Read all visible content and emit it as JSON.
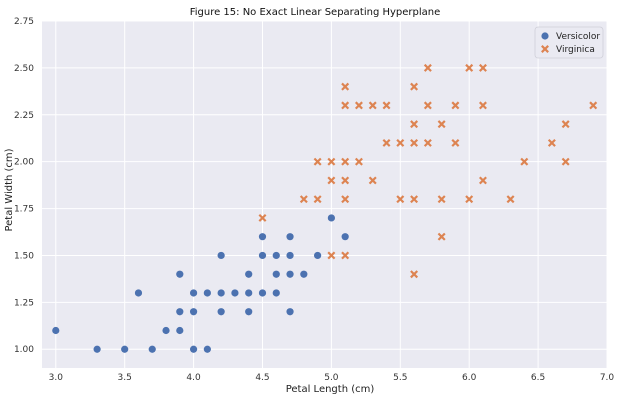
{
  "chart_data": {
    "type": "scatter",
    "title": "Figure 15: No Exact Linear Separating Hyperplane",
    "xlabel": "Petal Length (cm)",
    "ylabel": "Petal Width (cm)",
    "xlim": [
      2.9,
      7.0
    ],
    "ylim": [
      0.9,
      2.75
    ],
    "xticks": [
      "3.0",
      "3.5",
      "4.0",
      "4.5",
      "5.0",
      "5.5",
      "6.0",
      "6.5",
      "7.0"
    ],
    "yticks": [
      "1.00",
      "1.25",
      "1.50",
      "1.75",
      "2.00",
      "2.25",
      "2.50",
      "2.75"
    ],
    "grid": true,
    "legend_position": "top-right",
    "series": [
      {
        "name": "Versicolor",
        "marker": "circle",
        "color": "#4c72b0",
        "points": [
          [
            3.0,
            1.1
          ],
          [
            3.3,
            1.0
          ],
          [
            3.5,
            1.0
          ],
          [
            3.6,
            1.3
          ],
          [
            3.7,
            1.0
          ],
          [
            3.8,
            1.1
          ],
          [
            3.9,
            1.1
          ],
          [
            3.9,
            1.2
          ],
          [
            3.9,
            1.4
          ],
          [
            4.0,
            1.0
          ],
          [
            4.0,
            1.2
          ],
          [
            4.0,
            1.3
          ],
          [
            4.1,
            1.0
          ],
          [
            4.1,
            1.3
          ],
          [
            4.2,
            1.2
          ],
          [
            4.2,
            1.3
          ],
          [
            4.2,
            1.5
          ],
          [
            4.3,
            1.3
          ],
          [
            4.4,
            1.2
          ],
          [
            4.4,
            1.3
          ],
          [
            4.4,
            1.4
          ],
          [
            4.5,
            1.3
          ],
          [
            4.5,
            1.5
          ],
          [
            4.5,
            1.6
          ],
          [
            4.6,
            1.3
          ],
          [
            4.6,
            1.4
          ],
          [
            4.6,
            1.5
          ],
          [
            4.7,
            1.2
          ],
          [
            4.7,
            1.4
          ],
          [
            4.7,
            1.5
          ],
          [
            4.7,
            1.6
          ],
          [
            4.8,
            1.4
          ],
          [
            4.9,
            1.5
          ],
          [
            5.0,
            1.7
          ],
          [
            5.1,
            1.6
          ]
        ]
      },
      {
        "name": "Virginica",
        "marker": "x",
        "color": "#dd8452",
        "points": [
          [
            4.5,
            1.7
          ],
          [
            4.8,
            1.8
          ],
          [
            4.9,
            1.8
          ],
          [
            4.9,
            2.0
          ],
          [
            5.0,
            1.5
          ],
          [
            5.0,
            1.9
          ],
          [
            5.0,
            2.0
          ],
          [
            5.1,
            1.5
          ],
          [
            5.1,
            1.8
          ],
          [
            5.1,
            1.9
          ],
          [
            5.1,
            2.0
          ],
          [
            5.1,
            2.3
          ],
          [
            5.1,
            2.4
          ],
          [
            5.2,
            2.0
          ],
          [
            5.2,
            2.3
          ],
          [
            5.3,
            1.9
          ],
          [
            5.3,
            2.3
          ],
          [
            5.4,
            2.1
          ],
          [
            5.4,
            2.3
          ],
          [
            5.5,
            1.8
          ],
          [
            5.5,
            2.1
          ],
          [
            5.6,
            1.4
          ],
          [
            5.6,
            1.8
          ],
          [
            5.6,
            2.1
          ],
          [
            5.6,
            2.2
          ],
          [
            5.6,
            2.4
          ],
          [
            5.7,
            2.1
          ],
          [
            5.7,
            2.3
          ],
          [
            5.7,
            2.5
          ],
          [
            5.8,
            1.6
          ],
          [
            5.8,
            1.8
          ],
          [
            5.8,
            2.2
          ],
          [
            5.9,
            2.1
          ],
          [
            5.9,
            2.3
          ],
          [
            6.0,
            1.8
          ],
          [
            6.0,
            2.5
          ],
          [
            6.1,
            1.9
          ],
          [
            6.1,
            2.3
          ],
          [
            6.1,
            2.5
          ],
          [
            6.3,
            1.8
          ],
          [
            6.4,
            2.0
          ],
          [
            6.6,
            2.1
          ],
          [
            6.7,
            2.0
          ],
          [
            6.7,
            2.2
          ],
          [
            6.9,
            2.3
          ]
        ]
      }
    ]
  }
}
